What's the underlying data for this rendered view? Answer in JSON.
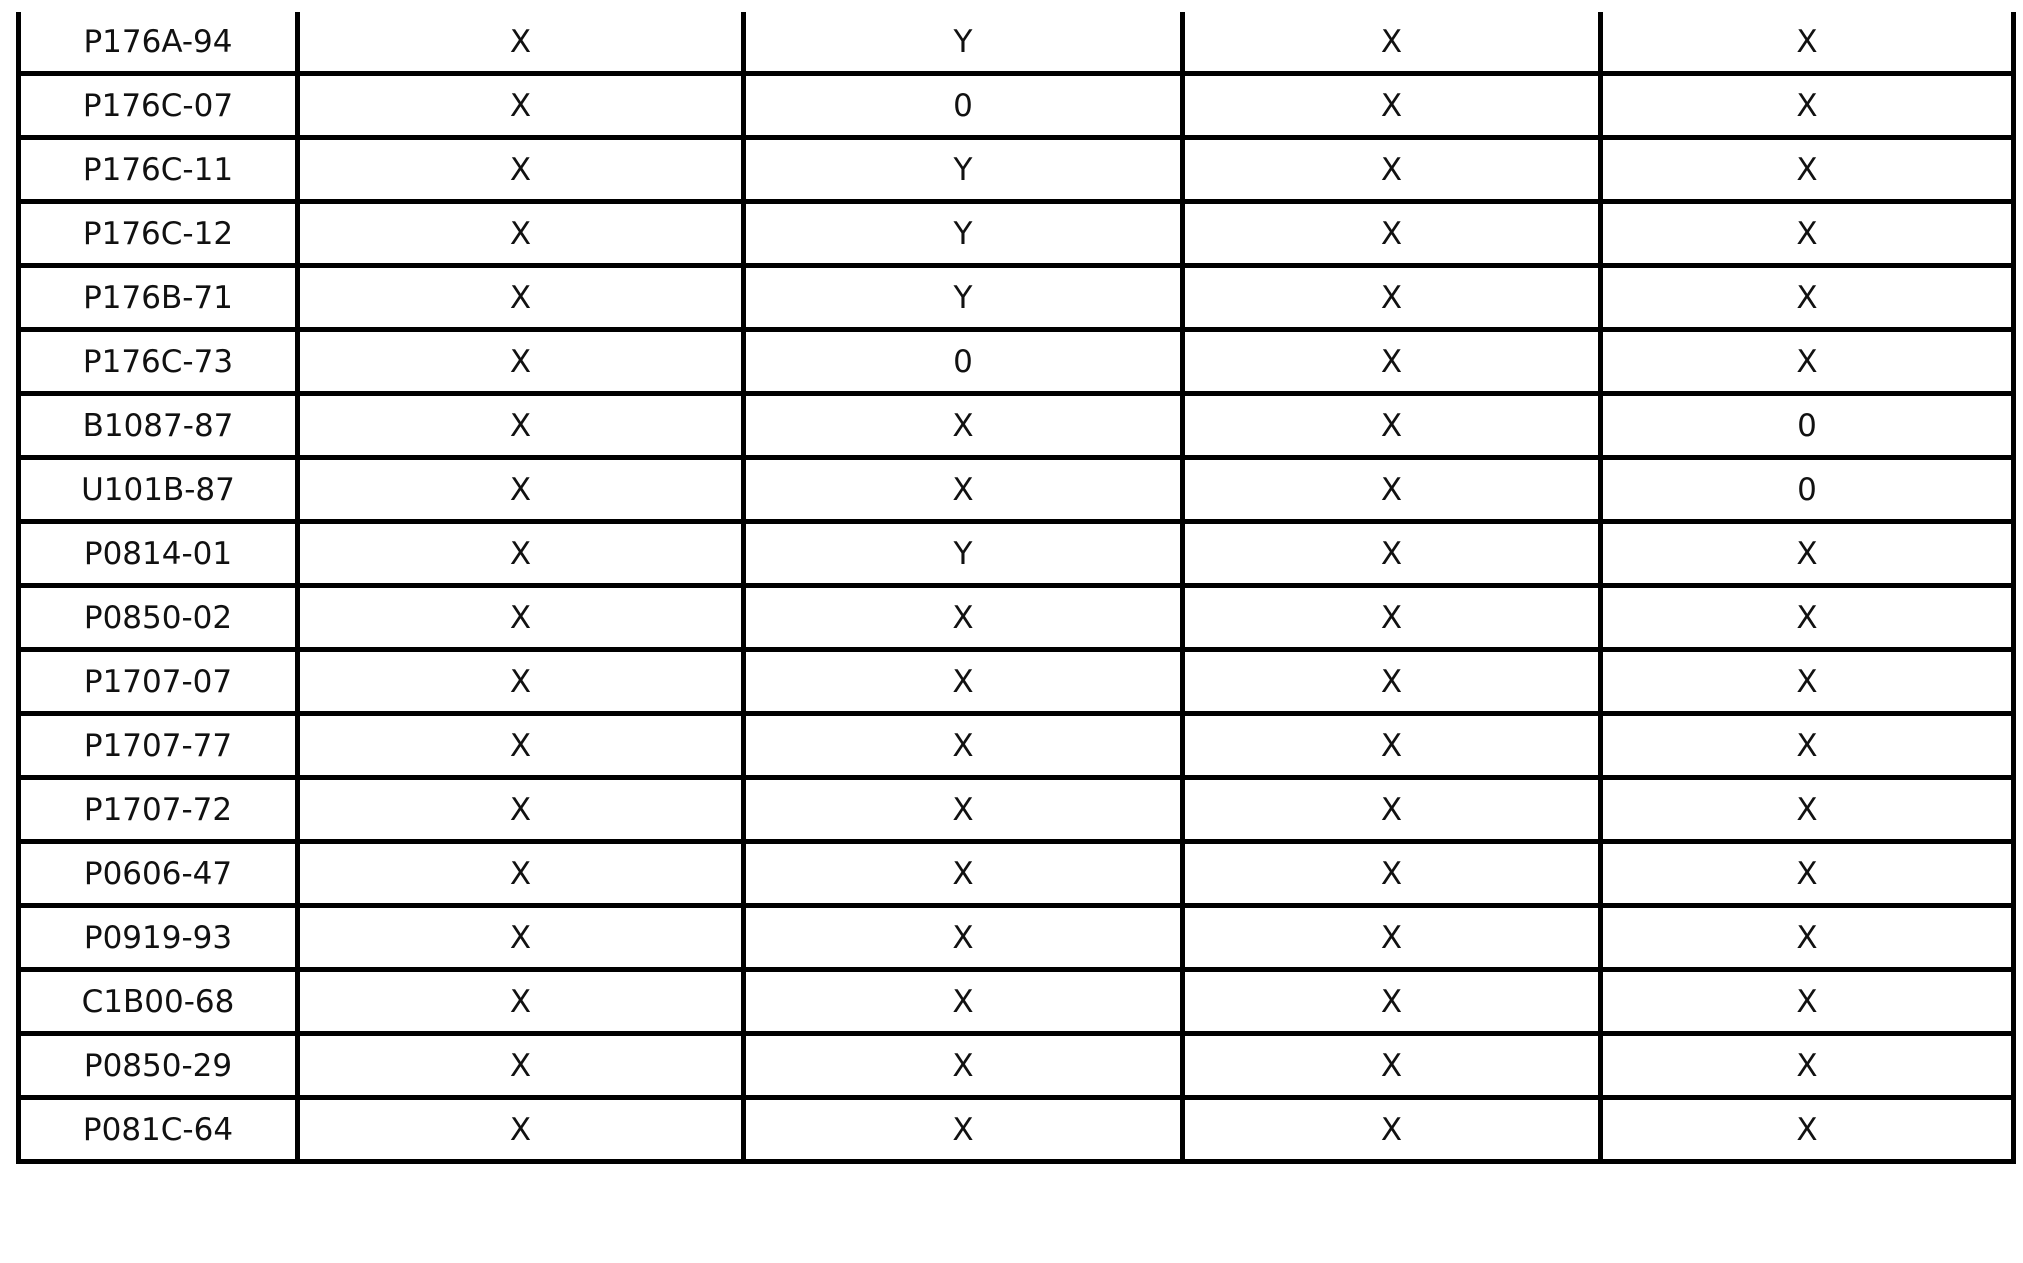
{
  "table": {
    "rows": [
      [
        "P176A-94",
        "X",
        "Y",
        "X",
        "X"
      ],
      [
        "P176C-07",
        "X",
        "0",
        "X",
        "X"
      ],
      [
        "P176C-11",
        "X",
        "Y",
        "X",
        "X"
      ],
      [
        "P176C-12",
        "X",
        "Y",
        "X",
        "X"
      ],
      [
        "P176B-71",
        "X",
        "Y",
        "X",
        "X"
      ],
      [
        "P176C-73",
        "X",
        "0",
        "X",
        "X"
      ],
      [
        "B1087-87",
        "X",
        "X",
        "X",
        "0"
      ],
      [
        "U101B-87",
        "X",
        "X",
        "X",
        "0"
      ],
      [
        "P0814-01",
        "X",
        "Y",
        "X",
        "X"
      ],
      [
        "P0850-02",
        "X",
        "X",
        "X",
        "X"
      ],
      [
        "P1707-07",
        "X",
        "X",
        "X",
        "X"
      ],
      [
        "P1707-77",
        "X",
        "X",
        "X",
        "X"
      ],
      [
        "P1707-72",
        "X",
        "X",
        "X",
        "X"
      ],
      [
        "P0606-47",
        "X",
        "X",
        "X",
        "X"
      ],
      [
        "P0919-93",
        "X",
        "X",
        "X",
        "X"
      ],
      [
        "C1B00-68",
        "X",
        "X",
        "X",
        "X"
      ],
      [
        "P0850-29",
        "X",
        "X",
        "X",
        "X"
      ],
      [
        "P081C-64",
        "X",
        "X",
        "X",
        "X"
      ]
    ]
  }
}
